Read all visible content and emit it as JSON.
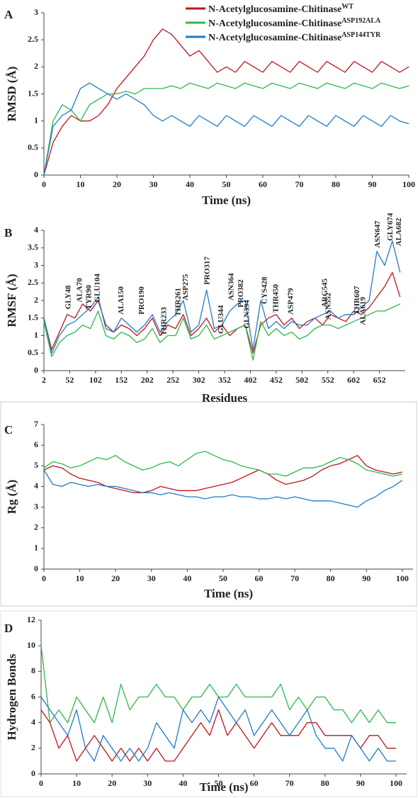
{
  "chart_data": [
    {
      "type": "line",
      "panel_label": "A",
      "xlabel": "Time (ns)",
      "ylabel": "RMSD (Å)",
      "xlim": [
        0,
        100
      ],
      "ylim": [
        0,
        3
      ],
      "xticks": [
        0,
        10,
        20,
        30,
        40,
        50,
        60,
        70,
        80,
        90,
        100
      ],
      "yticks": [
        0,
        0.5,
        1,
        1.5,
        2,
        2.5,
        3
      ],
      "legend": "top-right",
      "x": [
        0,
        2.5,
        5,
        7.5,
        10,
        12.5,
        15,
        17.5,
        20,
        22.5,
        25,
        27.5,
        30,
        32.5,
        35,
        37.5,
        40,
        42.5,
        45,
        47.5,
        50,
        52.5,
        55,
        57.5,
        60,
        62.5,
        65,
        67.5,
        70,
        72.5,
        75,
        77.5,
        80,
        82.5,
        85,
        87.5,
        90,
        92.5,
        95,
        97.5,
        100
      ],
      "series": [
        {
          "name": "N-Acetylglucosamine-Chitinase",
          "superscript": "WT",
          "color": "#c0141c",
          "values": [
            0,
            0.6,
            0.9,
            1.1,
            1.0,
            1.0,
            1.1,
            1.3,
            1.6,
            1.8,
            2.0,
            2.2,
            2.5,
            2.7,
            2.6,
            2.4,
            2.2,
            2.3,
            2.1,
            1.9,
            2.0,
            1.9,
            2.1,
            2.0,
            1.9,
            2.1,
            2.0,
            1.9,
            2.1,
            2.0,
            1.9,
            2.1,
            2.0,
            1.9,
            2.1,
            2.0,
            1.9,
            2.1,
            2.0,
            1.9,
            2.0
          ]
        },
        {
          "name": "N-Acetylglucosamine-Chitinase",
          "superscript": "ASP192ALA",
          "color": "#2db84d",
          "values": [
            0,
            1.0,
            1.3,
            1.2,
            1.0,
            1.3,
            1.4,
            1.5,
            1.5,
            1.55,
            1.5,
            1.6,
            1.6,
            1.6,
            1.65,
            1.6,
            1.7,
            1.65,
            1.6,
            1.7,
            1.65,
            1.6,
            1.7,
            1.65,
            1.6,
            1.7,
            1.65,
            1.6,
            1.7,
            1.65,
            1.6,
            1.7,
            1.65,
            1.6,
            1.7,
            1.65,
            1.6,
            1.7,
            1.65,
            1.6,
            1.65
          ]
        },
        {
          "name": "N-Acetylglucosamine-Chitinase",
          "superscript": "ASP144TYR",
          "color": "#1f7bc8",
          "values": [
            0,
            0.9,
            1.1,
            1.2,
            1.6,
            1.7,
            1.6,
            1.5,
            1.4,
            1.5,
            1.4,
            1.3,
            1.1,
            1.0,
            1.1,
            1.0,
            0.9,
            1.1,
            1.0,
            0.9,
            1.1,
            1.0,
            0.9,
            1.1,
            1.0,
            0.9,
            1.1,
            1.0,
            0.9,
            1.1,
            1.0,
            0.9,
            1.1,
            1.0,
            0.9,
            1.1,
            1.0,
            0.9,
            1.1,
            1.0,
            0.95
          ]
        }
      ]
    },
    {
      "type": "line",
      "panel_label": "B",
      "xlabel": "Residues",
      "ylabel": "RMSF (Å)",
      "xlim": [
        2,
        702
      ],
      "ylim": [
        0,
        4
      ],
      "xticks": [
        2,
        52,
        102,
        152,
        202,
        252,
        302,
        352,
        402,
        452,
        502,
        552,
        602,
        652
      ],
      "yticks": [
        0,
        0.5,
        1,
        1.5,
        2,
        2.5,
        3,
        3.5,
        4
      ],
      "x": [
        2,
        17,
        32,
        47,
        62,
        77,
        92,
        107,
        122,
        137,
        152,
        167,
        182,
        197,
        212,
        227,
        242,
        257,
        272,
        287,
        302,
        317,
        332,
        347,
        362,
        377,
        392,
        407,
        422,
        437,
        452,
        467,
        482,
        497,
        512,
        527,
        542,
        557,
        572,
        587,
        602,
        617,
        632,
        647,
        662,
        677,
        692
      ],
      "series": [
        {
          "color": "#c0141c",
          "values": [
            1.5,
            0.6,
            1.1,
            1.6,
            1.5,
            1.9,
            1.7,
            2.0,
            1.3,
            1.1,
            1.3,
            1.2,
            1.0,
            1.2,
            1.5,
            1.0,
            1.3,
            1.2,
            1.6,
            1.0,
            1.2,
            1.5,
            1.1,
            1.3,
            1.0,
            1.2,
            1.3,
            0.5,
            1.3,
            1.5,
            1.6,
            1.3,
            1.5,
            1.2,
            1.4,
            1.5,
            1.3,
            1.6,
            1.5,
            1.4,
            1.7,
            1.6,
            1.8,
            2.1,
            2.4,
            2.8,
            2.1
          ]
        },
        {
          "color": "#1f7bc8",
          "values": [
            1.5,
            0.5,
            1.0,
            1.3,
            1.4,
            1.6,
            1.8,
            2.1,
            1.2,
            1.1,
            1.5,
            1.3,
            1.1,
            1.3,
            1.6,
            1.1,
            1.4,
            1.6,
            2.0,
            1.1,
            1.3,
            2.3,
            1.2,
            1.3,
            1.7,
            1.9,
            2.0,
            0.6,
            2.0,
            1.2,
            1.4,
            1.2,
            1.4,
            1.3,
            1.3,
            1.5,
            1.6,
            1.7,
            1.5,
            1.6,
            1.6,
            1.8,
            2.0,
            3.4,
            3.0,
            3.7,
            2.8
          ]
        },
        {
          "color": "#2db84d",
          "values": [
            1.4,
            0.4,
            0.8,
            1.0,
            1.1,
            1.3,
            1.2,
            1.7,
            1.0,
            0.9,
            1.1,
            1.0,
            0.8,
            0.9,
            1.2,
            0.8,
            1.0,
            1.0,
            1.5,
            0.9,
            1.0,
            1.3,
            0.9,
            1.0,
            1.1,
            1.2,
            1.3,
            0.3,
            1.4,
            1.0,
            1.2,
            1.0,
            1.1,
            0.9,
            1.0,
            1.2,
            1.3,
            1.3,
            1.2,
            1.3,
            1.4,
            1.5,
            1.6,
            1.7,
            1.7,
            1.8,
            1.9
          ]
        }
      ],
      "annotations": [
        {
          "text": "GLY48",
          "x": 48,
          "y": 1.75,
          "color": "#c0141c"
        },
        {
          "text": "ALA70",
          "x": 70,
          "y": 1.95,
          "color": "#c0141c"
        },
        {
          "text": "TYR90",
          "x": 88,
          "y": 1.75,
          "color": "#c0141c"
        },
        {
          "text": "GLU104",
          "x": 104,
          "y": 1.95,
          "color": "#c0141c"
        },
        {
          "text": "ALA150",
          "x": 150,
          "y": 1.6,
          "color": "#1f7bc8"
        },
        {
          "text": "PRO190",
          "x": 190,
          "y": 1.6,
          "color": "#1f7bc8"
        },
        {
          "text": "THR233",
          "x": 233,
          "y": 1.0,
          "color": "#1f7bc8"
        },
        {
          "text": "THR261",
          "x": 261,
          "y": 1.55,
          "color": "#1f7bc8"
        },
        {
          "text": "ASP275",
          "x": 275,
          "y": 2.0,
          "color": "#1f7bc8"
        },
        {
          "text": "PRO317",
          "x": 317,
          "y": 2.45,
          "color": "#1f7bc8"
        },
        {
          "text": "GLU344",
          "x": 344,
          "y": 1.05,
          "color": "#c0141c"
        },
        {
          "text": "ASN364",
          "x": 364,
          "y": 2.0,
          "color": "#1f7bc8"
        },
        {
          "text": "PRO382",
          "x": 382,
          "y": 1.8,
          "color": "#1f7bc8"
        },
        {
          "text": "GLN394",
          "x": 394,
          "y": 1.2,
          "color": "#1f7bc8"
        },
        {
          "text": "CYS428",
          "x": 428,
          "y": 1.9,
          "color": "#1f7bc8"
        },
        {
          "text": "THR450",
          "x": 450,
          "y": 1.65,
          "color": "#c0141c"
        },
        {
          "text": "ASP479",
          "x": 479,
          "y": 1.6,
          "color": "#c0141c"
        },
        {
          "text": "ARG545",
          "x": 545,
          "y": 1.8,
          "color": "#1f7bc8"
        },
        {
          "text": "ASN552",
          "x": 552,
          "y": 1.45,
          "color": "#c0141c"
        },
        {
          "text": "THR607",
          "x": 607,
          "y": 1.6,
          "color": "#c0141c"
        },
        {
          "text": "ALA619",
          "x": 619,
          "y": 1.3,
          "color": "#2db84d"
        },
        {
          "text": "ASN647",
          "x": 647,
          "y": 3.5,
          "color": "#1f7bc8"
        },
        {
          "text": "GLY674",
          "x": 672,
          "y": 3.7,
          "color": "#1f7bc8"
        },
        {
          "text": "ALA682",
          "x": 688,
          "y": 3.55,
          "color": "#1f7bc8"
        }
      ]
    },
    {
      "type": "line",
      "panel_label": "C",
      "xlabel": "Time (ns)",
      "ylabel": "Rg (Å)",
      "xlim": [
        0,
        103
      ],
      "ylim": [
        0,
        7
      ],
      "xticks": [
        0,
        10,
        20,
        30,
        40,
        50,
        60,
        70,
        80,
        90,
        100
      ],
      "yticks": [
        0,
        1,
        2,
        3,
        4,
        5,
        6,
        7
      ],
      "x": [
        0,
        2.5,
        5,
        7.5,
        10,
        12.5,
        15,
        17.5,
        20,
        22.5,
        25,
        27.5,
        30,
        32.5,
        35,
        37.5,
        40,
        42.5,
        45,
        47.5,
        50,
        52.5,
        55,
        57.5,
        60,
        62.5,
        65,
        67.5,
        70,
        72.5,
        75,
        77.5,
        80,
        82.5,
        85,
        87.5,
        90,
        92.5,
        95,
        97.5,
        100
      ],
      "series": [
        {
          "color": "#c0141c",
          "values": [
            4.8,
            5.0,
            4.9,
            4.6,
            4.4,
            4.3,
            4.2,
            4.0,
            3.9,
            3.8,
            3.7,
            3.7,
            3.8,
            4.0,
            3.9,
            3.8,
            3.8,
            3.8,
            3.9,
            4.0,
            4.1,
            4.2,
            4.4,
            4.6,
            4.8,
            4.6,
            4.3,
            4.1,
            4.2,
            4.3,
            4.5,
            4.8,
            5.0,
            5.1,
            5.3,
            5.5,
            5.0,
            4.8,
            4.7,
            4.6,
            4.7
          ]
        },
        {
          "color": "#2db84d",
          "values": [
            4.9,
            5.2,
            5.1,
            4.9,
            5.0,
            5.2,
            5.4,
            5.3,
            5.5,
            5.2,
            5.0,
            4.8,
            4.9,
            5.1,
            5.2,
            5.0,
            5.3,
            5.6,
            5.7,
            5.5,
            5.3,
            5.2,
            5.0,
            4.9,
            4.8,
            4.6,
            4.6,
            4.5,
            4.7,
            4.9,
            4.9,
            5.0,
            5.2,
            5.4,
            5.3,
            5.1,
            4.8,
            4.7,
            4.6,
            4.5,
            4.6
          ]
        },
        {
          "color": "#1f7bc8",
          "values": [
            4.8,
            4.1,
            4.0,
            4.2,
            4.1,
            4.0,
            4.1,
            4.0,
            4.0,
            3.9,
            3.8,
            3.7,
            3.7,
            3.6,
            3.7,
            3.6,
            3.5,
            3.5,
            3.4,
            3.5,
            3.5,
            3.6,
            3.5,
            3.5,
            3.4,
            3.4,
            3.5,
            3.4,
            3.5,
            3.4,
            3.3,
            3.3,
            3.3,
            3.2,
            3.1,
            3.0,
            3.3,
            3.5,
            3.8,
            4.0,
            4.3
          ]
        }
      ]
    },
    {
      "type": "line",
      "panel_label": "D",
      "xlabel": "Time (ns)",
      "ylabel": "Hydrogen Bonds",
      "xlim": [
        0,
        103
      ],
      "ylim": [
        0,
        12
      ],
      "xticks": [
        0,
        10,
        20,
        30,
        40,
        50,
        60,
        70,
        80,
        90,
        100
      ],
      "yticks": [
        0,
        2,
        4,
        6,
        8,
        10,
        12
      ],
      "x": [
        0,
        2.5,
        5,
        7.5,
        10,
        12.5,
        15,
        17.5,
        20,
        22.5,
        25,
        27.5,
        30,
        32.5,
        35,
        37.5,
        40,
        42.5,
        45,
        47.5,
        50,
        52.5,
        55,
        57.5,
        60,
        62.5,
        65,
        67.5,
        70,
        72.5,
        75,
        77.5,
        80,
        82.5,
        85,
        87.5,
        90,
        92.5,
        95,
        97.5,
        100
      ],
      "series": [
        {
          "color": "#2db84d",
          "values": [
            10,
            4,
            5,
            4,
            6,
            5,
            4,
            6,
            4,
            7,
            5,
            6,
            6,
            7,
            6,
            6,
            5,
            6,
            6,
            7,
            6,
            6,
            7,
            6,
            6,
            6,
            6,
            7,
            5,
            6,
            5,
            6,
            6,
            5,
            5,
            4,
            5,
            4,
            5,
            4,
            4
          ]
        },
        {
          "color": "#c0141c",
          "values": [
            5,
            4,
            2,
            3,
            1,
            2,
            3,
            2,
            1,
            2,
            1,
            2,
            1,
            2,
            1,
            1,
            2,
            3,
            4,
            3,
            5,
            3,
            4,
            3,
            2,
            3,
            4,
            3,
            3,
            3,
            4,
            4,
            3,
            3,
            3,
            3,
            2,
            3,
            3,
            2,
            2
          ]
        },
        {
          "color": "#1f7bc8",
          "values": [
            6,
            5,
            4,
            3,
            5,
            2,
            1,
            3,
            2,
            1,
            2,
            1,
            2,
            4,
            3,
            2,
            5,
            4,
            5,
            4,
            6,
            5,
            4,
            5,
            3,
            4,
            5,
            4,
            3,
            4,
            5,
            3,
            2,
            2,
            1,
            3,
            2,
            1,
            2,
            1,
            1
          ]
        }
      ]
    }
  ]
}
